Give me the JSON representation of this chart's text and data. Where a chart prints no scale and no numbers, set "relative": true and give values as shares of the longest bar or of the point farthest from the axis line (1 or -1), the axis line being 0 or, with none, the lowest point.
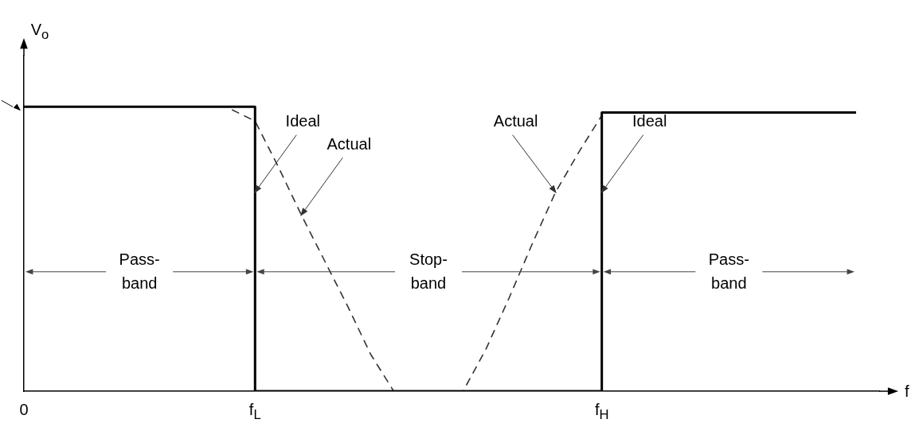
{
  "chart_data": {
    "type": "line",
    "relative": true,
    "xlabel": "f",
    "ylabel": "V$_{o}$",
    "categories": [
      "0",
      null,
      null,
      null,
      null,
      null,
      null,
      null,
      null,
      null,
      "f$_{L}$",
      null,
      null,
      null,
      null,
      null,
      null,
      null,
      null,
      null,
      null,
      null,
      null,
      null,
      null,
      "f$_{H}$",
      null,
      null,
      null,
      null,
      null,
      null,
      null,
      null,
      null,
      null,
      null,
      null
    ],
    "series": [
      {
        "name": "Ideal",
        "type": "step",
        "color": "#000000",
        "line_style": "solid",
        "values": [
          1,
          1,
          1,
          1,
          1,
          1,
          1,
          1,
          1,
          1,
          1,
          0,
          0,
          0,
          0,
          0,
          0,
          0,
          0,
          0,
          0,
          0,
          0,
          0,
          0,
          0,
          0.98,
          0.98,
          0.98,
          0.98,
          0.98,
          0.98,
          0.98,
          0.98,
          0.98,
          0.98,
          0.98,
          null
        ]
      },
      {
        "name": "Actual",
        "color": "#333333",
        "line_style": "dashed",
        "values": [
          null,
          null,
          null,
          null,
          null,
          null,
          null,
          null,
          null,
          0.99,
          0.95,
          0.79,
          0.62,
          0.46,
          0.3,
          0.13,
          0,
          0,
          0,
          0,
          0.15,
          0.33,
          0.52,
          0.7,
          0.84,
          0.97,
          null,
          null,
          null,
          null,
          null,
          null,
          null,
          null,
          null,
          null,
          null,
          null
        ]
      }
    ],
    "annotations": [
      "Pass- band",
      "Stop- band",
      "Pass- band"
    ]
  }
}
